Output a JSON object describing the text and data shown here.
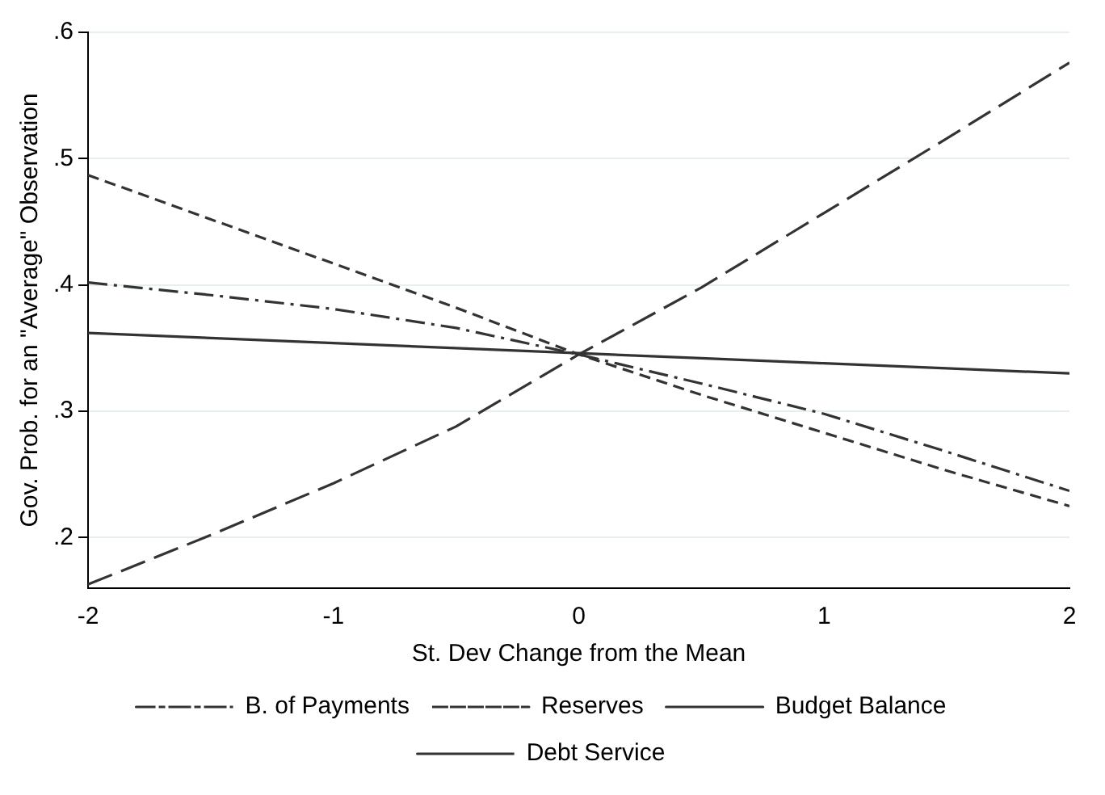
{
  "chart_data": {
    "type": "line",
    "xlabel": "St. Dev Change from the Mean",
    "ylabel": "Gov. Prob. for an \"Average\" Observation",
    "x": [
      -2,
      -1.5,
      -1,
      -0.5,
      0,
      0.5,
      1,
      1.5,
      2
    ],
    "series": [
      {
        "name": "B. of Payments",
        "color": "#333333",
        "line_style": "dashdot",
        "values": [
          0.402,
          0.392,
          0.381,
          0.366,
          0.345,
          0.322,
          0.298,
          0.268,
          0.237
        ]
      },
      {
        "name": "Reserves",
        "color": "#333333",
        "line_style": "dashed",
        "values": [
          0.487,
          0.452,
          0.417,
          0.382,
          0.345,
          0.313,
          0.283,
          0.253,
          0.225
        ]
      },
      {
        "name": "Budget Balance",
        "color": "#333333",
        "line_style": "solid",
        "values": [
          0.362,
          0.358,
          0.354,
          0.35,
          0.346,
          0.342,
          0.338,
          0.334,
          0.33
        ]
      },
      {
        "name": "Debt Service",
        "color": "#333333",
        "line_style": "longdash",
        "values": [
          0.163,
          0.202,
          0.243,
          0.288,
          0.345,
          0.398,
          0.457,
          0.516,
          0.576
        ]
      }
    ],
    "xlim": [
      -2,
      2
    ],
    "xticks": [
      -2,
      -1,
      0,
      1,
      2
    ],
    "ylim": [
      0.16,
      0.6
    ],
    "yticks": [
      {
        "value": 0.2,
        "label": ".2"
      },
      {
        "value": 0.3,
        "label": ".3"
      },
      {
        "value": 0.4,
        "label": ".4"
      },
      {
        "value": 0.5,
        "label": ".5"
      },
      {
        "value": 0.6,
        "label": ".6"
      }
    ],
    "grid": "y",
    "legend": "bottom",
    "marker": "none"
  }
}
